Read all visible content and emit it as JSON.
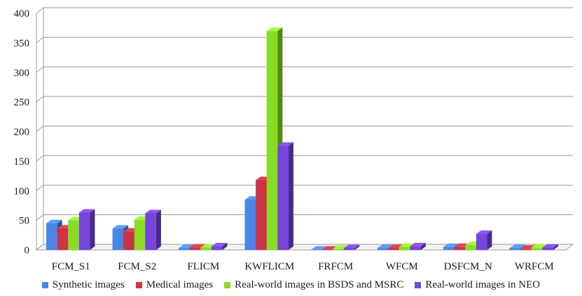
{
  "chart_data": {
    "type": "bar",
    "title": "",
    "xlabel": "",
    "ylabel": "",
    "ylim": [
      0,
      400
    ],
    "yticks": [
      0,
      50,
      100,
      150,
      200,
      250,
      300,
      350,
      400
    ],
    "grid": true,
    "legend_position": "bottom",
    "style": "3d clustered column",
    "categories": [
      "FCM_S1",
      "FCM_S2",
      "FLICM",
      "KWFLICM",
      "FRFCM",
      "WFCM",
      "DSFCM_N",
      "WRFCM"
    ],
    "series": [
      {
        "name": "Synthetic images",
        "color": "#4a86e8",
        "values": [
          45,
          36,
          3,
          85,
          0.5,
          3,
          5,
          3
        ]
      },
      {
        "name": "Medical images",
        "color": "#cc3344",
        "values": [
          36,
          31,
          4,
          118,
          0.5,
          3,
          5,
          2
        ]
      },
      {
        "name": "Real-world images in BSDS and MSRC",
        "color": "#88dd22",
        "values": [
          50,
          51,
          4,
          370,
          2,
          5,
          8,
          4
        ]
      },
      {
        "name": "Real-world images in NEO",
        "color": "#7744dd",
        "values": [
          63,
          62,
          6,
          176,
          3,
          6,
          27,
          4
        ]
      }
    ]
  }
}
